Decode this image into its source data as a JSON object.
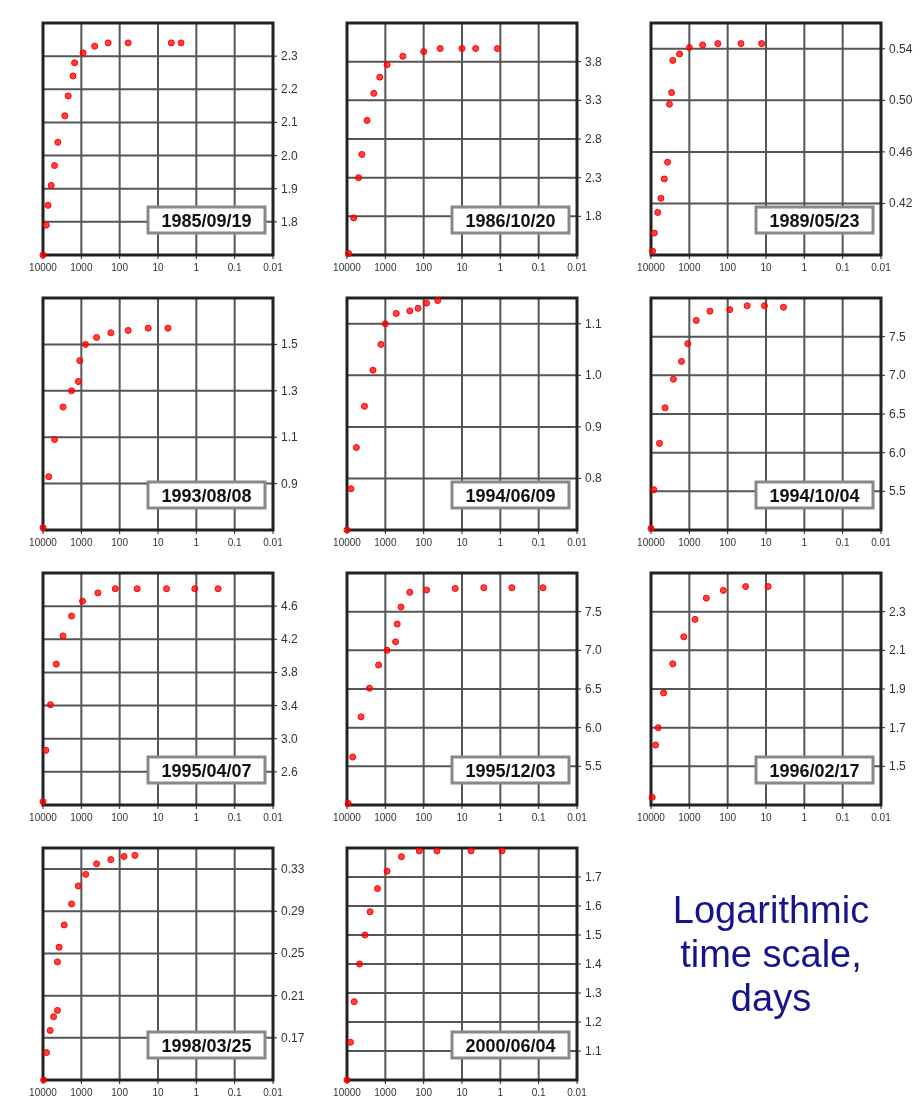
{
  "chart_data": [
    {
      "type": "scatter",
      "color": "#ff0000",
      "marker": "circle",
      "log": "x",
      "grid": true,
      "xlim": [
        10000,
        0.01
      ],
      "xticks": [
        10000,
        1000,
        100,
        10,
        1,
        0.1,
        0.01
      ],
      "ylim": [
        1.7,
        2.4
      ],
      "yticks": [
        1.8,
        1.9,
        {
          "value": 2,
          "label": "2.0"
        },
        2.1,
        2.2,
        2.3
      ],
      "annotations": [
        "1985/09/19"
      ],
      "x": [
        10000,
        8200,
        7400,
        6100,
        5000,
        4100,
        2700,
        2200,
        1650,
        1500,
        900,
        450,
        200,
        60,
        4.5,
        2.5
      ],
      "values": [
        1.7,
        1.79,
        1.85,
        1.91,
        1.97,
        2.04,
        2.12,
        2.18,
        2.24,
        2.28,
        2.31,
        2.33,
        2.34,
        2.34,
        2.34,
        2.34
      ]
    },
    {
      "type": "scatter",
      "color": "#ff0000",
      "marker": "circle",
      "log": "x",
      "grid": true,
      "xlim": [
        10000,
        0.01
      ],
      "xticks": [
        10000,
        1000,
        100,
        10,
        1,
        0.1,
        0.01
      ],
      "ylim": [
        1.3,
        4.3
      ],
      "yticks": [
        1.8,
        2.3,
        2.8,
        3.3,
        3.8
      ],
      "annotations": [
        "1986/10/20"
      ],
      "x": [
        9050,
        6700,
        5000,
        4100,
        3000,
        2000,
        1400,
        900,
        350,
        100,
        37,
        10,
        4.4,
        1.2
      ],
      "values": [
        1.32,
        1.78,
        2.3,
        2.6,
        3.04,
        3.39,
        3.6,
        3.76,
        3.87,
        3.93,
        3.97,
        3.97,
        3.97,
        3.97
      ]
    },
    {
      "type": "scatter",
      "color": "#ff0000",
      "marker": "circle",
      "log": "x",
      "grid": true,
      "xlim": [
        10000,
        0.01
      ],
      "xticks": [
        10000,
        1000,
        100,
        10,
        1,
        0.1,
        0.01
      ],
      "ylim": [
        0.38,
        0.56
      ],
      "yticks": [
        0.42,
        0.46,
        {
          "value": 0.5,
          "label": "0.50"
        },
        0.54
      ],
      "annotations": [
        "1989/05/23"
      ],
      "x": [
        9100,
        8200,
        6700,
        5500,
        4500,
        3700,
        3300,
        2900,
        2700,
        1800,
        1000,
        450,
        180,
        45,
        13
      ],
      "values": [
        0.383,
        0.397,
        0.413,
        0.424,
        0.439,
        0.452,
        0.497,
        0.506,
        0.531,
        0.536,
        0.541,
        0.543,
        0.544,
        0.544,
        0.544
      ]
    },
    {
      "type": "scatter",
      "color": "#ff0000",
      "marker": "circle",
      "log": "x",
      "grid": true,
      "xlim": [
        10000,
        0.01
      ],
      "xticks": [
        10000,
        1000,
        100,
        10,
        1,
        0.1,
        0.01
      ],
      "ylim": [
        0.7,
        1.7
      ],
      "yticks": [
        0.9,
        1.1,
        1.3,
        1.5
      ],
      "annotations": [
        "1993/08/08"
      ],
      "x": [
        10000,
        7100,
        5000,
        3000,
        1800,
        1200,
        1100,
        780,
        400,
        170,
        60,
        18,
        5.5
      ],
      "values": [
        0.71,
        0.93,
        1.09,
        1.23,
        1.3,
        1.34,
        1.43,
        1.5,
        1.53,
        1.55,
        1.56,
        1.57,
        1.57
      ]
    },
    {
      "type": "scatter",
      "color": "#ff0000",
      "marker": "circle",
      "log": "x",
      "grid": true,
      "xlim": [
        10000,
        0.01
      ],
      "xticks": [
        10000,
        1000,
        100,
        10,
        1,
        0.1,
        0.01
      ],
      "ylim": [
        0.7,
        1.15
      ],
      "yticks": [
        0.8,
        0.9,
        {
          "value": 1,
          "label": "1.0"
        },
        1.1
      ],
      "annotations": [
        "1994/06/09"
      ],
      "x": [
        10000,
        7900,
        5700,
        3500,
        2100,
        1300,
        1000,
        520,
        230,
        140,
        84,
        43
      ],
      "values": [
        0.7,
        0.78,
        0.86,
        0.94,
        1.01,
        1.06,
        1.1,
        1.12,
        1.125,
        1.13,
        1.14,
        1.145
      ]
    },
    {
      "type": "scatter",
      "color": "#ff0000",
      "marker": "circle",
      "log": "x",
      "grid": true,
      "xlim": [
        10000,
        0.01
      ],
      "xticks": [
        10000,
        1000,
        100,
        10,
        1,
        0.1,
        0.01
      ],
      "ylim": [
        5,
        8
      ],
      "yticks": [
        5.5,
        {
          "value": 6,
          "label": "6.0"
        },
        6.5,
        {
          "value": 7,
          "label": "7.0"
        },
        7.5
      ],
      "annotations": [
        "1994/10/04"
      ],
      "x": [
        10000,
        8400,
        6000,
        4300,
        2600,
        1600,
        1100,
        660,
        290,
        88,
        31,
        11,
        3.5
      ],
      "values": [
        5.02,
        5.52,
        6.12,
        6.58,
        6.95,
        7.18,
        7.41,
        7.71,
        7.83,
        7.85,
        7.9,
        7.9,
        7.88
      ]
    },
    {
      "type": "scatter",
      "color": "#ff0000",
      "marker": "circle",
      "log": "x",
      "grid": true,
      "xlim": [
        10000,
        0.01
      ],
      "xticks": [
        10000,
        1000,
        100,
        10,
        1,
        0.1,
        0.01
      ],
      "ylim": [
        2.2,
        5
      ],
      "yticks": [
        2.6,
        {
          "value": 3,
          "label": "3.0"
        },
        3.4,
        3.8,
        4.2,
        4.6
      ],
      "annotations": [
        "1995/04/07"
      ],
      "x": [
        10000,
        8400,
        6400,
        4500,
        3000,
        1800,
        930,
        370,
        130,
        35,
        6,
        1.1,
        0.27
      ],
      "values": [
        2.24,
        2.86,
        3.41,
        3.9,
        4.24,
        4.48,
        4.66,
        4.76,
        4.81,
        4.81,
        4.81,
        4.81,
        4.81
      ]
    },
    {
      "type": "scatter",
      "color": "#ff0000",
      "marker": "circle",
      "log": "x",
      "grid": true,
      "xlim": [
        10000,
        0.01
      ],
      "xticks": [
        10000,
        1000,
        100,
        10,
        1,
        0.1,
        0.01
      ],
      "ylim": [
        5,
        8
      ],
      "yticks": [
        5.5,
        {
          "value": 6,
          "label": "6.0"
        },
        6.5,
        {
          "value": 7,
          "label": "7.0"
        },
        7.5
      ],
      "annotations": [
        "1995/12/03"
      ],
      "x": [
        9300,
        7100,
        4300,
        2600,
        1500,
        900,
        540,
        490,
        390,
        230,
        84,
        15,
        2.7,
        0.5,
        0.077
      ],
      "values": [
        5.02,
        5.62,
        6.14,
        6.51,
        6.81,
        7,
        7.11,
        7.34,
        7.56,
        7.75,
        7.78,
        7.8,
        7.81,
        7.81,
        7.81
      ]
    },
    {
      "type": "scatter",
      "color": "#ff0000",
      "marker": "circle",
      "log": "x",
      "grid": true,
      "xlim": [
        10000,
        0.01
      ],
      "xticks": [
        10000,
        1000,
        100,
        10,
        1,
        0.1,
        0.01
      ],
      "ylim": [
        1.3,
        2.5
      ],
      "yticks": [
        1.5,
        1.7,
        1.9,
        2.1,
        2.3
      ],
      "annotations": [
        "1996/02/17"
      ],
      "x": [
        9300,
        7600,
        6500,
        4700,
        2700,
        1400,
        710,
        360,
        130,
        34,
        8.8
      ],
      "values": [
        1.34,
        1.61,
        1.7,
        1.88,
        2.03,
        2.17,
        2.26,
        2.37,
        2.41,
        2.43,
        2.43
      ]
    },
    {
      "type": "scatter",
      "color": "#ff0000",
      "marker": "circle",
      "log": "x",
      "grid": true,
      "xlim": [
        10000,
        0.01
      ],
      "xticks": [
        10000,
        1000,
        100,
        10,
        1,
        0.1,
        0.01
      ],
      "ylim": [
        0.13,
        0.35
      ],
      "yticks": [
        0.17,
        0.21,
        0.25,
        0.29,
        0.33
      ],
      "annotations": [
        "1998/03/25"
      ],
      "x": [
        9600,
        8100,
        6500,
        5300,
        4200,
        4200,
        3800,
        2800,
        1800,
        1200,
        770,
        400,
        170,
        77,
        40
      ],
      "values": [
        0.13,
        0.156,
        0.177,
        0.19,
        0.196,
        0.242,
        0.256,
        0.277,
        0.297,
        0.314,
        0.325,
        0.335,
        0.339,
        0.342,
        0.343
      ]
    },
    {
      "type": "scatter",
      "color": "#ff0000",
      "marker": "circle",
      "log": "x",
      "grid": true,
      "xlim": [
        10000,
        0.01
      ],
      "xticks": [
        10000,
        1000,
        100,
        10,
        1,
        0.1,
        0.01
      ],
      "ylim": [
        1,
        1.8
      ],
      "yticks": [
        1.1,
        1.2,
        1.3,
        1.4,
        1.5,
        1.6,
        1.7
      ],
      "annotations": [
        "2000/06/04"
      ],
      "x": [
        10000,
        8100,
        6500,
        4700,
        3400,
        2500,
        1600,
        900,
        380,
        130,
        45,
        5.8,
        0.9
      ],
      "values": [
        1.0,
        1.13,
        1.27,
        1.4,
        1.5,
        1.58,
        1.66,
        1.72,
        1.77,
        1.79,
        1.79,
        1.79,
        1.79
      ]
    },
    {
      "type": "other",
      "title": "Logarithmic time scale, days"
    }
  ]
}
